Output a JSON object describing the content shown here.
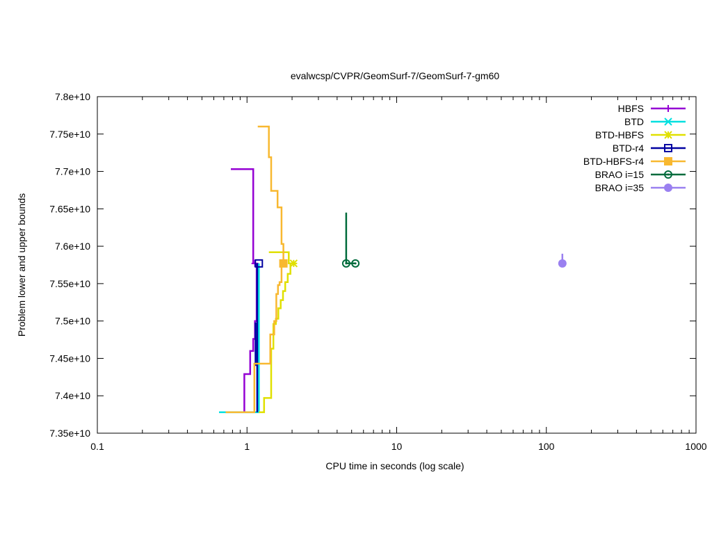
{
  "chart_data": {
    "type": "line",
    "title": "evalwcsp/CVPR/GeomSurf-7/GeomSurf-7-gm60",
    "xlabel": "CPU time in seconds (log scale)",
    "ylabel": "Problem lower and upper bounds",
    "xscale": "log",
    "xlim": [
      0.1,
      1000
    ],
    "ylim": [
      73500000000,
      78000000000
    ],
    "x_ticks": [
      {
        "value": 0.1,
        "label": "0.1"
      },
      {
        "value": 1,
        "label": "1"
      },
      {
        "value": 10,
        "label": "10"
      },
      {
        "value": 100,
        "label": "100"
      },
      {
        "value": 1000,
        "label": "1000"
      }
    ],
    "y_ticks": [
      {
        "value": 73500000000,
        "label": "7.35e+10"
      },
      {
        "value": 74000000000,
        "label": "7.4e+10"
      },
      {
        "value": 74500000000,
        "label": "7.45e+10"
      },
      {
        "value": 75000000000,
        "label": "7.5e+10"
      },
      {
        "value": 75500000000,
        "label": "7.55e+10"
      },
      {
        "value": 76000000000,
        "label": "7.6e+10"
      },
      {
        "value": 76500000000,
        "label": "7.65e+10"
      },
      {
        "value": 77000000000,
        "label": "7.7e+10"
      },
      {
        "value": 77500000000,
        "label": "7.75e+10"
      },
      {
        "value": 78000000000,
        "label": "7.8e+10"
      }
    ],
    "grid": false,
    "legend_position": "top-right",
    "series": [
      {
        "name": "HBFS",
        "color": "#9400d3",
        "marker": "plus",
        "lines": [
          [
            [
              0.78,
              77030000000
            ],
            [
              1.1,
              77030000000
            ],
            [
              1.1,
              75770000000
            ],
            [
              1.15,
              75770000000
            ]
          ],
          [
            [
              0.96,
              73780000000
            ],
            [
              0.96,
              74290000000
            ],
            [
              1.05,
              74290000000
            ],
            [
              1.05,
              74600000000
            ],
            [
              1.1,
              74600000000
            ],
            [
              1.1,
              74760000000
            ],
            [
              1.13,
              74760000000
            ],
            [
              1.13,
              75000000000
            ],
            [
              1.16,
              75000000000
            ],
            [
              1.16,
              75770000000
            ]
          ]
        ],
        "markers": [
          [
            1.13,
            75770000000
          ]
        ]
      },
      {
        "name": "BTD",
        "color": "#00e0e0",
        "marker": "cross",
        "lines": [
          [
            [
              0.65,
              73780000000
            ],
            [
              1.2,
              73780000000
            ],
            [
              1.2,
              75770000000
            ]
          ]
        ],
        "markers": []
      },
      {
        "name": "BTD-HBFS",
        "color": "#e0e000",
        "marker": "star",
        "lines": [
          [
            [
              1.4,
              75920000000
            ],
            [
              1.9,
              75920000000
            ],
            [
              1.9,
              75770000000
            ],
            [
              2.05,
              75770000000
            ]
          ],
          [
            [
              1.2,
              73780000000
            ],
            [
              1.3,
              73780000000
            ],
            [
              1.3,
              73970000000
            ],
            [
              1.45,
              73970000000
            ],
            [
              1.45,
              74630000000
            ],
            [
              1.5,
              74630000000
            ],
            [
              1.5,
              74960000000
            ],
            [
              1.56,
              74960000000
            ],
            [
              1.56,
              75030000000
            ],
            [
              1.62,
              75030000000
            ],
            [
              1.62,
              75170000000
            ],
            [
              1.68,
              75170000000
            ],
            [
              1.68,
              75280000000
            ],
            [
              1.74,
              75280000000
            ],
            [
              1.74,
              75400000000
            ],
            [
              1.8,
              75400000000
            ],
            [
              1.8,
              75520000000
            ],
            [
              1.87,
              75520000000
            ],
            [
              1.87,
              75630000000
            ],
            [
              1.95,
              75630000000
            ],
            [
              1.95,
              75770000000
            ]
          ]
        ],
        "markers": [
          [
            2.05,
            75770000000
          ]
        ]
      },
      {
        "name": "BTD-r4",
        "color": "#0000a0",
        "marker": "open-square",
        "lines": [
          [
            [
              1.17,
              73780000000
            ],
            [
              1.17,
              75770000000
            ]
          ],
          [
            [
              1.14,
              74400000000
            ],
            [
              1.14,
              74980000000
            ]
          ]
        ],
        "markers": [
          [
            1.2,
            75770000000
          ]
        ]
      },
      {
        "name": "BTD-HBFS-r4",
        "color": "#f8b830",
        "marker": "filled-square",
        "lines": [
          [
            [
              1.18,
              77600000000
            ],
            [
              1.4,
              77600000000
            ],
            [
              1.4,
              77190000000
            ],
            [
              1.45,
              77190000000
            ],
            [
              1.45,
              76740000000
            ],
            [
              1.6,
              76740000000
            ],
            [
              1.6,
              76520000000
            ],
            [
              1.7,
              76520000000
            ],
            [
              1.7,
              76030000000
            ],
            [
              1.75,
              76030000000
            ],
            [
              1.75,
              75770000000
            ],
            [
              1.8,
              75770000000
            ]
          ],
          [
            [
              0.72,
              73780000000
            ],
            [
              1.12,
              73780000000
            ],
            [
              1.12,
              74430000000
            ],
            [
              1.43,
              74430000000
            ],
            [
              1.43,
              74820000000
            ],
            [
              1.52,
              74820000000
            ],
            [
              1.52,
              75000000000
            ],
            [
              1.57,
              75000000000
            ],
            [
              1.57,
              75360000000
            ],
            [
              1.61,
              75360000000
            ],
            [
              1.61,
              75480000000
            ],
            [
              1.65,
              75480000000
            ],
            [
              1.65,
              75520000000
            ],
            [
              1.7,
              75520000000
            ],
            [
              1.7,
              75770000000
            ]
          ]
        ],
        "markers": [
          [
            1.75,
            75770000000
          ]
        ]
      },
      {
        "name": "BRAO i=15",
        "color": "#006b3c",
        "marker": "circle-dot",
        "lines": [
          [
            [
              4.6,
              76450000000
            ],
            [
              4.6,
              75770000000
            ],
            [
              5.3,
              75770000000
            ]
          ]
        ],
        "markers": [
          [
            4.6,
            75770000000
          ],
          [
            5.3,
            75770000000
          ]
        ]
      },
      {
        "name": "BRAO i=35",
        "color": "#9a80f0",
        "marker": "filled-circle",
        "lines": [
          [
            [
              128,
              75900000000
            ],
            [
              128,
              75770000000
            ]
          ]
        ],
        "markers": [
          [
            128,
            75770000000
          ]
        ]
      }
    ]
  }
}
